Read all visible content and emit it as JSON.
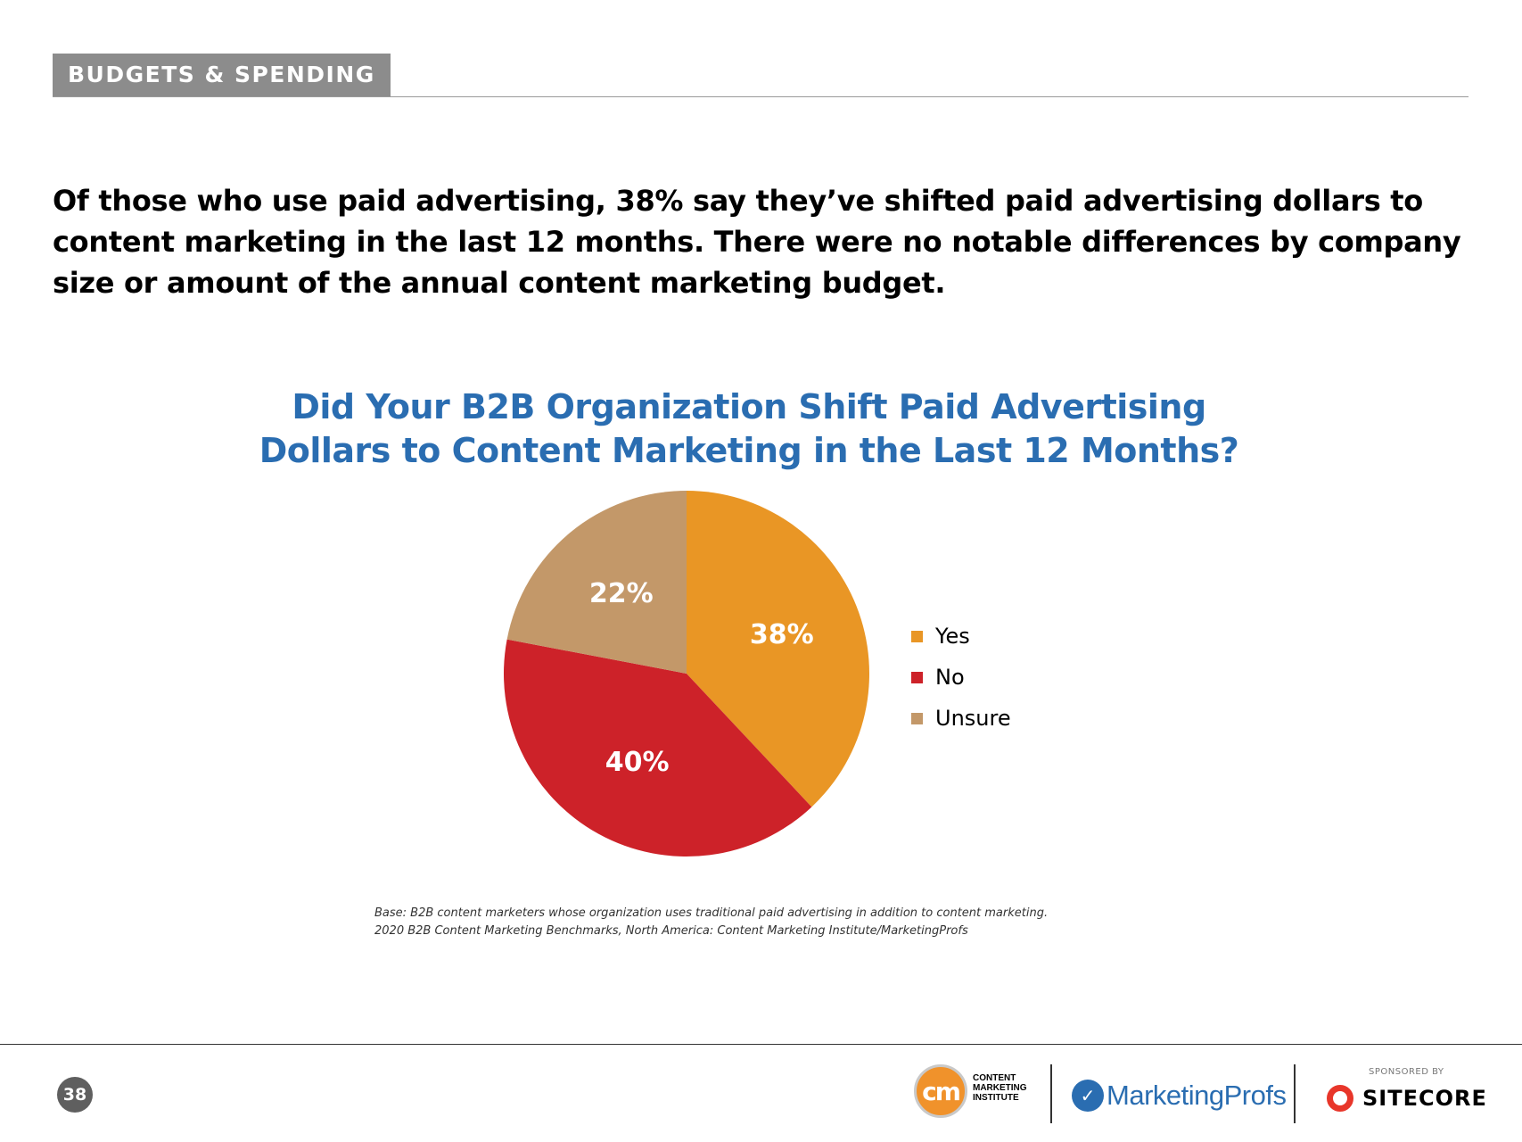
{
  "section": {
    "label": "BUDGETS & SPENDING"
  },
  "headline": "Of those who use paid advertising, 38% say they’ve shifted paid advertising dollars to content marketing in the last 12 months. There were no notable differences by company size or amount of the annual content marketing budget.",
  "chart_data": {
    "type": "pie",
    "title_lines": [
      "Did Your B2B Organization Shift Paid Advertising",
      "Dollars to Content Marketing in the Last 12 Months?"
    ],
    "categories": [
      "Yes",
      "No",
      "Unsure"
    ],
    "values": [
      38,
      40,
      22
    ],
    "value_labels": [
      "38%",
      "40%",
      "22%"
    ],
    "colors": [
      "#e99625",
      "#cd2229",
      "#c39869"
    ],
    "legend_position": "right"
  },
  "note": {
    "line1": "Base: B2B content marketers whose organization uses traditional paid advertising in addition to content marketing.",
    "line2": "2020 B2B Content Marketing Benchmarks, North America: Content Marketing Institute/MarketingProfs"
  },
  "footer": {
    "page_number": "38",
    "cmi_mark": "cm",
    "cmi_name": "CONTENT MARKETING INSTITUTE",
    "marketingprofs": "MarketingProfs",
    "sponsored_by": "SPONSORED BY",
    "sitecore": "SITECORE"
  },
  "icons": [
    "cmi-logo-icon",
    "marketingprofs-logo-icon",
    "sitecore-logo-icon"
  ]
}
